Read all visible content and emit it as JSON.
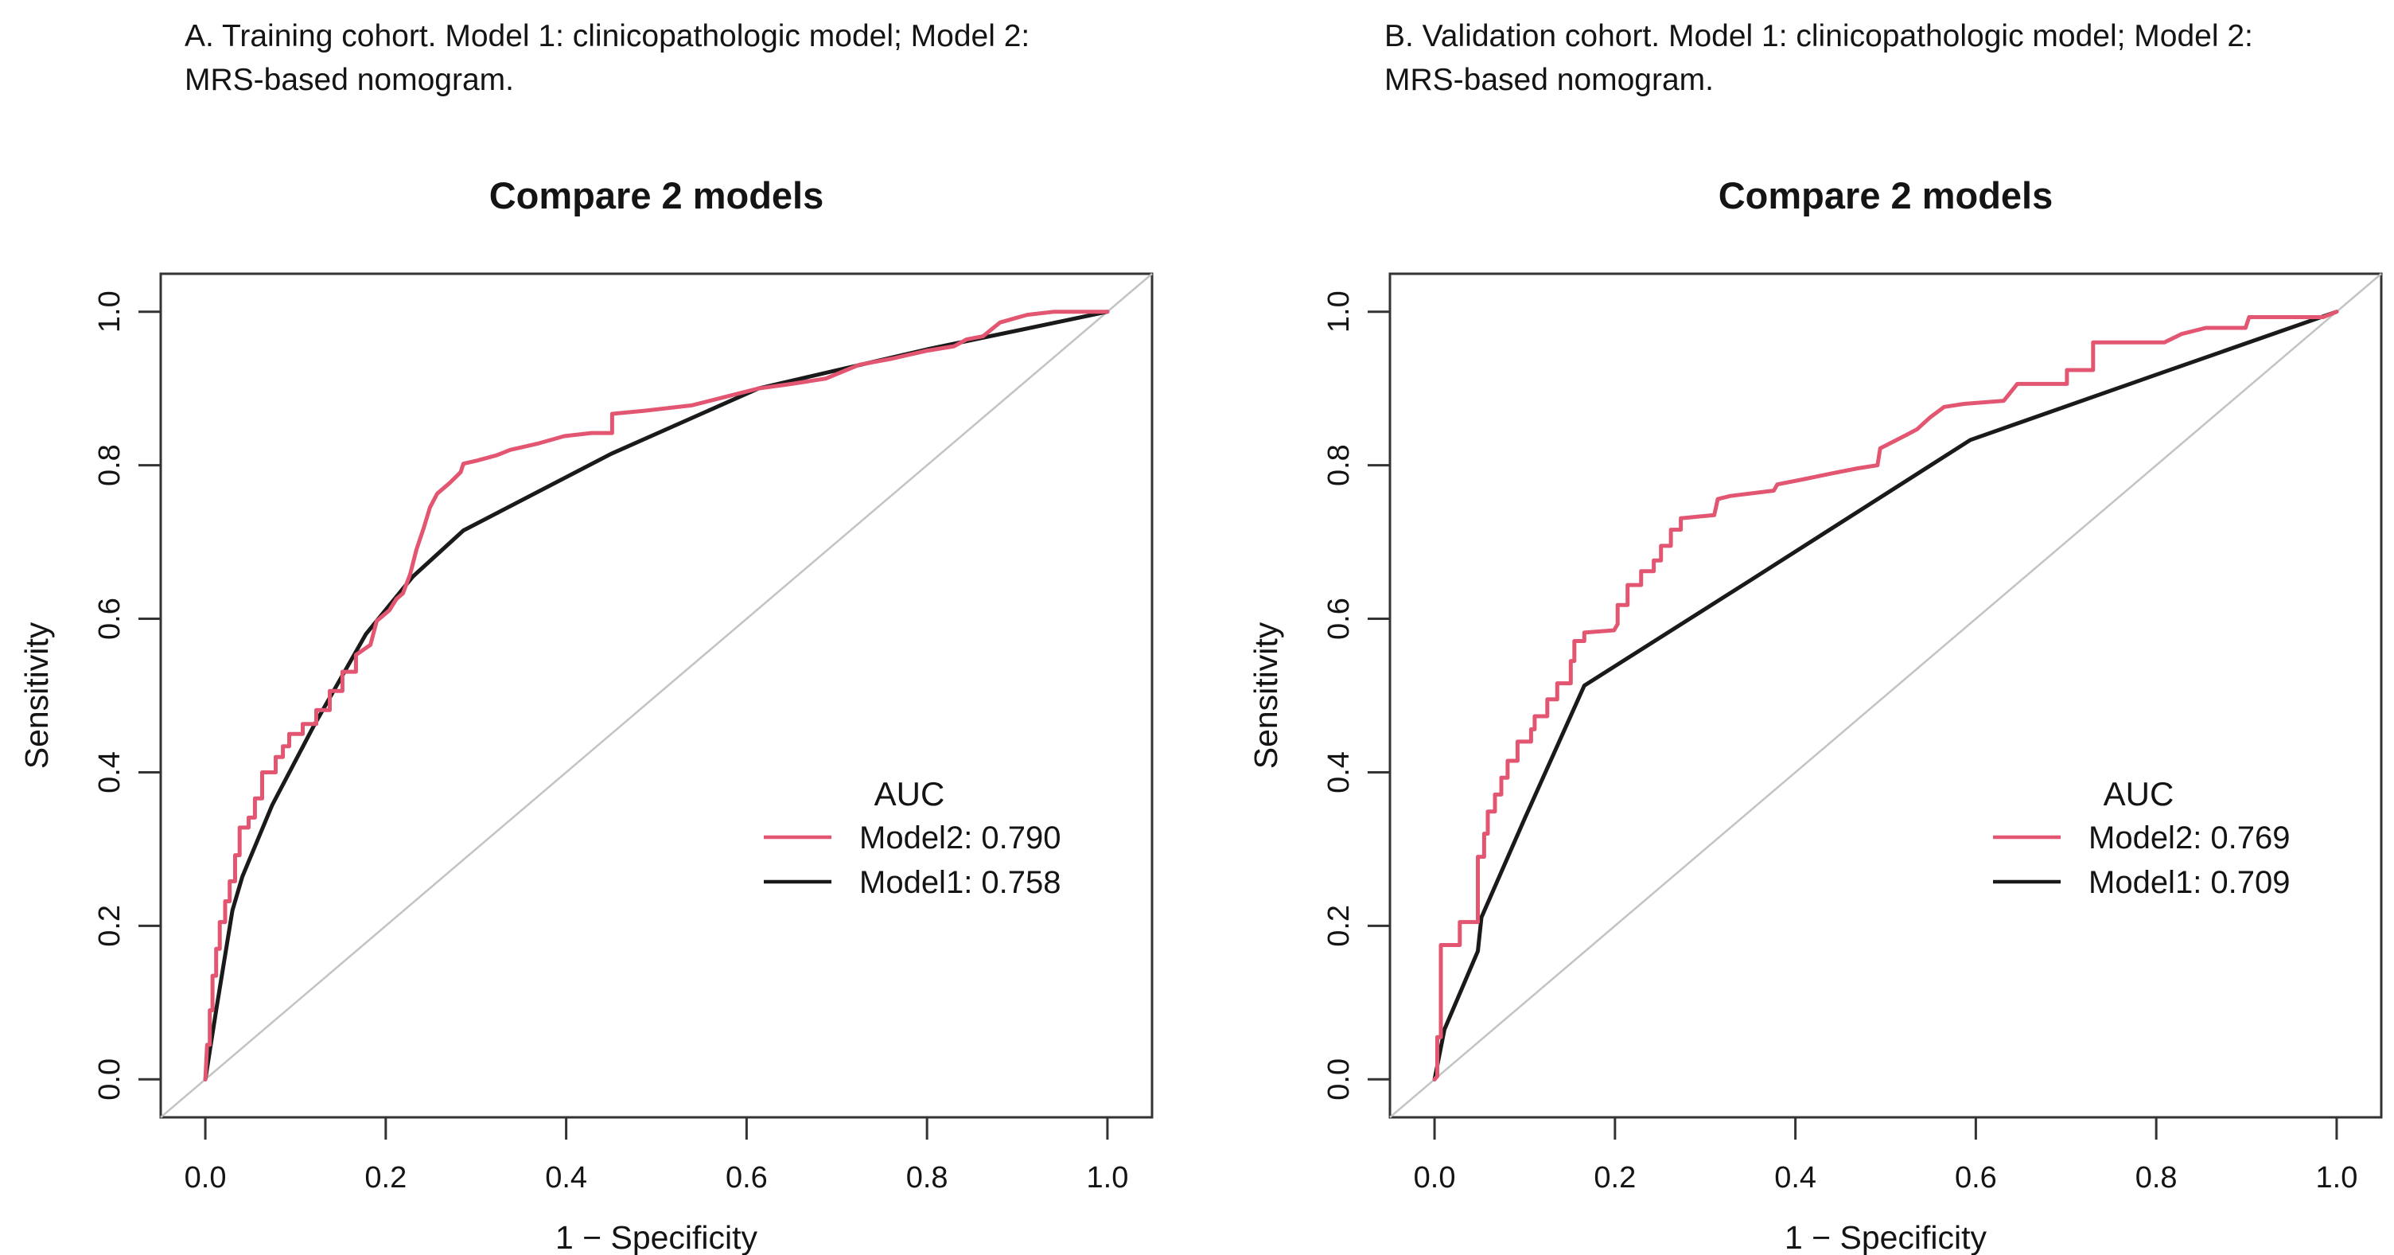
{
  "figure": {
    "background": "#ffffff",
    "text_color": "#141414",
    "axis_color": "#333333",
    "reference_line_color": "#c3c3c3"
  },
  "chart_data": [
    {
      "type": "line",
      "panel": "A",
      "caption_lines": [
        "A. Training cohort. Model 1: clinicopathologic model; Model 2:",
        "MRS-based nomogram."
      ],
      "title": "Compare 2 models",
      "xlabel": "1 − Specificity",
      "ylabel": "Sensitivity",
      "xlim": [
        0,
        1
      ],
      "ylim": [
        0,
        1
      ],
      "x_ticks": [
        "0.0",
        "0.2",
        "0.4",
        "0.6",
        "0.8",
        "1.0"
      ],
      "y_ticks": [
        "0.0",
        "0.2",
        "0.4",
        "0.6",
        "0.8",
        "1.0"
      ],
      "grid": false,
      "legend": {
        "title": "AUC",
        "position": "lower-right",
        "entries": [
          {
            "name": "Model2",
            "auc": "0.790",
            "label": "Model2: 0.790",
            "color": "#e25672"
          },
          {
            "name": "Model1",
            "auc": "0.758",
            "label": "Model1: 0.758",
            "color": "#1a1a1a"
          }
        ]
      },
      "reference_line": {
        "from": [
          0,
          0
        ],
        "to": [
          1,
          1
        ],
        "color": "#c3c3c3"
      },
      "series": [
        {
          "name": "Model1",
          "color": "#1a1a1a",
          "points": [
            [
              0,
              0
            ],
            [
              0.012,
              0.09
            ],
            [
              0.03,
              0.22
            ],
            [
              0.041,
              0.264
            ],
            [
              0.074,
              0.357
            ],
            [
              0.12,
              0.46
            ],
            [
              0.178,
              0.58
            ],
            [
              0.23,
              0.655
            ],
            [
              0.286,
              0.715
            ],
            [
              0.45,
              0.815
            ],
            [
              0.613,
              0.9
            ],
            [
              0.8,
              0.951
            ],
            [
              1,
              1
            ]
          ]
        },
        {
          "name": "Model2",
          "color": "#e25672",
          "points": [
            [
              0,
              0
            ],
            [
              0.002,
              0.045
            ],
            [
              0.005,
              0.045
            ],
            [
              0.005,
              0.09
            ],
            [
              0.008,
              0.09
            ],
            [
              0.008,
              0.135
            ],
            [
              0.012,
              0.135
            ],
            [
              0.012,
              0.17
            ],
            [
              0.016,
              0.17
            ],
            [
              0.016,
              0.205
            ],
            [
              0.022,
              0.205
            ],
            [
              0.022,
              0.232
            ],
            [
              0.027,
              0.232
            ],
            [
              0.027,
              0.258
            ],
            [
              0.033,
              0.258
            ],
            [
              0.033,
              0.292
            ],
            [
              0.038,
              0.292
            ],
            [
              0.038,
              0.328
            ],
            [
              0.048,
              0.328
            ],
            [
              0.048,
              0.341
            ],
            [
              0.055,
              0.341
            ],
            [
              0.055,
              0.366
            ],
            [
              0.063,
              0.366
            ],
            [
              0.063,
              0.4
            ],
            [
              0.078,
              0.4
            ],
            [
              0.078,
              0.42
            ],
            [
              0.086,
              0.42
            ],
            [
              0.086,
              0.434
            ],
            [
              0.093,
              0.434
            ],
            [
              0.093,
              0.45
            ],
            [
              0.108,
              0.45
            ],
            [
              0.108,
              0.463
            ],
            [
              0.123,
              0.463
            ],
            [
              0.123,
              0.481
            ],
            [
              0.138,
              0.481
            ],
            [
              0.138,
              0.506
            ],
            [
              0.152,
              0.506
            ],
            [
              0.152,
              0.531
            ],
            [
              0.167,
              0.531
            ],
            [
              0.167,
              0.553
            ],
            [
              0.183,
              0.566
            ],
            [
              0.19,
              0.597
            ],
            [
              0.204,
              0.611
            ],
            [
              0.212,
              0.626
            ],
            [
              0.219,
              0.633
            ],
            [
              0.227,
              0.658
            ],
            [
              0.234,
              0.69
            ],
            [
              0.242,
              0.718
            ],
            [
              0.249,
              0.745
            ],
            [
              0.257,
              0.763
            ],
            [
              0.271,
              0.777
            ],
            [
              0.283,
              0.791
            ],
            [
              0.286,
              0.802
            ],
            [
              0.301,
              0.806
            ],
            [
              0.323,
              0.813
            ],
            [
              0.338,
              0.82
            ],
            [
              0.368,
              0.828
            ],
            [
              0.398,
              0.838
            ],
            [
              0.428,
              0.842
            ],
            [
              0.451,
              0.842
            ],
            [
              0.451,
              0.867
            ],
            [
              0.487,
              0.871
            ],
            [
              0.539,
              0.878
            ],
            [
              0.576,
              0.889
            ],
            [
              0.613,
              0.9
            ],
            [
              0.65,
              0.906
            ],
            [
              0.688,
              0.913
            ],
            [
              0.725,
              0.931
            ],
            [
              0.762,
              0.939
            ],
            [
              0.799,
              0.949
            ],
            [
              0.83,
              0.955
            ],
            [
              0.844,
              0.964
            ],
            [
              0.862,
              0.968
            ],
            [
              0.881,
              0.986
            ],
            [
              0.911,
              0.996
            ],
            [
              0.941,
              1
            ],
            [
              1,
              1
            ]
          ]
        }
      ]
    },
    {
      "type": "line",
      "panel": "B",
      "caption_lines": [
        "B. Validation cohort. Model 1: clinicopathologic model; Model 2:",
        "MRS-based nomogram."
      ],
      "title": "Compare 2 models",
      "xlabel": "1 − Specificity",
      "ylabel": "Sensitivity",
      "xlim": [
        0,
        1
      ],
      "ylim": [
        0,
        1
      ],
      "x_ticks": [
        "0.0",
        "0.2",
        "0.4",
        "0.6",
        "0.8",
        "1.0"
      ],
      "y_ticks": [
        "0.0",
        "0.2",
        "0.4",
        "0.6",
        "0.8",
        "1.0"
      ],
      "grid": false,
      "legend": {
        "title": "AUC",
        "position": "lower-right",
        "entries": [
          {
            "name": "Model2",
            "auc": "0.769",
            "label": "Model2: 0.769",
            "color": "#e25672"
          },
          {
            "name": "Model1",
            "auc": "0.709",
            "label": "Model1: 0.709",
            "color": "#1a1a1a"
          }
        ]
      },
      "reference_line": {
        "from": [
          0,
          0
        ],
        "to": [
          1,
          1
        ],
        "color": "#c3c3c3"
      },
      "series": [
        {
          "name": "Model1",
          "color": "#1a1a1a",
          "points": [
            [
              0,
              0
            ],
            [
              0.011,
              0.065
            ],
            [
              0.048,
              0.167
            ],
            [
              0.052,
              0.211
            ],
            [
              0.1,
              0.34
            ],
            [
              0.166,
              0.513
            ],
            [
              0.35,
              0.65
            ],
            [
              0.594,
              0.833
            ],
            [
              0.8,
              0.918
            ],
            [
              1,
              1
            ]
          ]
        },
        {
          "name": "Model2",
          "color": "#e25672",
          "points": [
            [
              0,
              0
            ],
            [
              0.003,
              0.004
            ],
            [
              0.003,
              0.055
            ],
            [
              0.007,
              0.055
            ],
            [
              0.007,
              0.175
            ],
            [
              0.028,
              0.175
            ],
            [
              0.028,
              0.205
            ],
            [
              0.048,
              0.205
            ],
            [
              0.048,
              0.29
            ],
            [
              0.055,
              0.29
            ],
            [
              0.055,
              0.32
            ],
            [
              0.059,
              0.32
            ],
            [
              0.059,
              0.349
            ],
            [
              0.067,
              0.349
            ],
            [
              0.067,
              0.371
            ],
            [
              0.074,
              0.371
            ],
            [
              0.074,
              0.393
            ],
            [
              0.081,
              0.393
            ],
            [
              0.081,
              0.415
            ],
            [
              0.092,
              0.415
            ],
            [
              0.092,
              0.44
            ],
            [
              0.107,
              0.44
            ],
            [
              0.107,
              0.456
            ],
            [
              0.111,
              0.456
            ],
            [
              0.111,
              0.473
            ],
            [
              0.125,
              0.473
            ],
            [
              0.125,
              0.495
            ],
            [
              0.136,
              0.495
            ],
            [
              0.136,
              0.516
            ],
            [
              0.151,
              0.516
            ],
            [
              0.151,
              0.545
            ],
            [
              0.155,
              0.545
            ],
            [
              0.155,
              0.571
            ],
            [
              0.166,
              0.571
            ],
            [
              0.166,
              0.582
            ],
            [
              0.199,
              0.585
            ],
            [
              0.203,
              0.593
            ],
            [
              0.203,
              0.618
            ],
            [
              0.214,
              0.618
            ],
            [
              0.214,
              0.644
            ],
            [
              0.229,
              0.644
            ],
            [
              0.229,
              0.662
            ],
            [
              0.243,
              0.662
            ],
            [
              0.243,
              0.676
            ],
            [
              0.251,
              0.676
            ],
            [
              0.251,
              0.695
            ],
            [
              0.262,
              0.695
            ],
            [
              0.262,
              0.716
            ],
            [
              0.273,
              0.716
            ],
            [
              0.273,
              0.731
            ],
            [
              0.31,
              0.735
            ],
            [
              0.314,
              0.756
            ],
            [
              0.328,
              0.76
            ],
            [
              0.376,
              0.767
            ],
            [
              0.38,
              0.775
            ],
            [
              0.41,
              0.782
            ],
            [
              0.439,
              0.789
            ],
            [
              0.469,
              0.796
            ],
            [
              0.491,
              0.8
            ],
            [
              0.494,
              0.822
            ],
            [
              0.524,
              0.84
            ],
            [
              0.535,
              0.847
            ],
            [
              0.549,
              0.862
            ],
            [
              0.565,
              0.876
            ],
            [
              0.587,
              0.88
            ],
            [
              0.631,
              0.884
            ],
            [
              0.646,
              0.906
            ],
            [
              0.701,
              0.906
            ],
            [
              0.701,
              0.924
            ],
            [
              0.73,
              0.924
            ],
            [
              0.73,
              0.96
            ],
            [
              0.809,
              0.96
            ],
            [
              0.828,
              0.971
            ],
            [
              0.855,
              0.979
            ],
            [
              0.899,
              0.979
            ],
            [
              0.903,
              0.993
            ],
            [
              0.985,
              0.993
            ],
            [
              1,
              1
            ]
          ]
        }
      ]
    }
  ]
}
